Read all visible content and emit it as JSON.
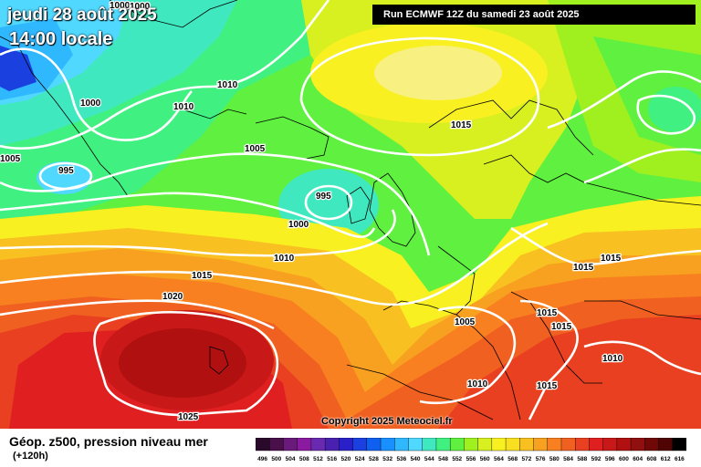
{
  "header": {
    "date": "jeudi 28 août 2025",
    "time": "14:00 locale",
    "run": "Run ECMWF 12Z du samedi 23 août 2025"
  },
  "copyright": "Copyright 2025 Meteociel.fr",
  "footer": {
    "product": "Géop. z500, pression niveau mer",
    "range": "(+120h)"
  },
  "isobar_labels": [
    "1000",
    "1000",
    "1010",
    "1010",
    "1000",
    "1005",
    "995",
    "1005",
    "995",
    "1015",
    "1000",
    "1010",
    "1015",
    "1020",
    "1015",
    "1015",
    "1005",
    "1015",
    "1015",
    "1010",
    "1015",
    "1010",
    "1025"
  ],
  "legend": {
    "values": [
      "496",
      "500",
      "504",
      "508",
      "512",
      "516",
      "520",
      "524",
      "528",
      "532",
      "536",
      "540",
      "544",
      "548",
      "552",
      "556",
      "560",
      "564",
      "568",
      "572",
      "576",
      "580",
      "584",
      "588",
      "592",
      "596",
      "600",
      "604",
      "608",
      "612",
      "616"
    ],
    "colors": [
      "#2a0a2a",
      "#4a104a",
      "#6a1a7a",
      "#8a1aa0",
      "#6a2ab0",
      "#4a20b0",
      "#2a20c8",
      "#1a40e0",
      "#1060f0",
      "#1890ff",
      "#30b8ff",
      "#50d8ff",
      "#40e8c0",
      "#40f080",
      "#60f040",
      "#a0f020",
      "#d8f020",
      "#f8f020",
      "#f8e020",
      "#f8c020",
      "#f8a020",
      "#f88020",
      "#f06020",
      "#e84020",
      "#e02020",
      "#c81818",
      "#b01010",
      "#901010",
      "#700808",
      "#500404",
      "#000000"
    ]
  }
}
